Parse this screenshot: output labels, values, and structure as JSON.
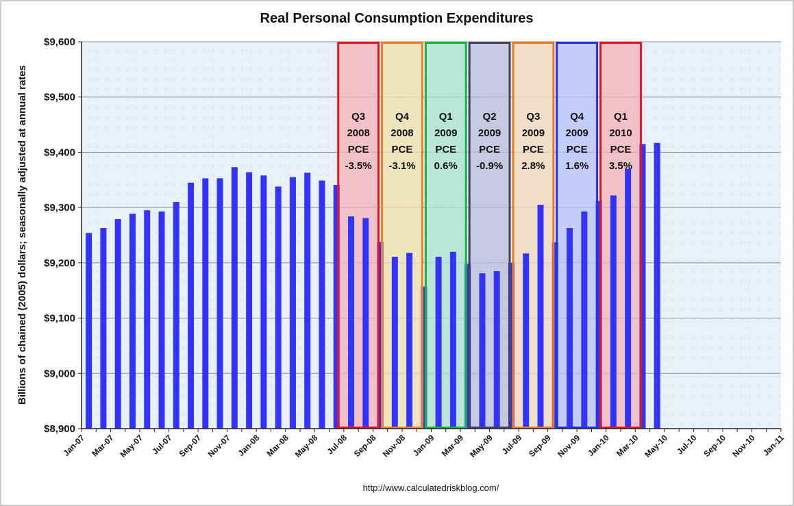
{
  "chart_data": {
    "type": "bar",
    "title": "Real Personal Consumption Expenditures",
    "ylabel": "Billions of chained (2005) dollars; seasonally adjusted at annual rates",
    "xlabel": "",
    "source": "http://www.calculatedriskblog.com/",
    "ylim": [
      8900,
      9600
    ],
    "yticks": [
      8900,
      9000,
      9100,
      9200,
      9300,
      9400,
      9500,
      9600
    ],
    "ytick_labels": [
      "$8,900",
      "$9,000",
      "$9,100",
      "$9,200",
      "$9,300",
      "$9,400",
      "$9,500",
      "$9,600"
    ],
    "grid": true,
    "bar_color": "#3333ff",
    "axis_months": [
      "Jan-07",
      "Feb-07",
      "Mar-07",
      "Apr-07",
      "May-07",
      "Jun-07",
      "Jul-07",
      "Aug-07",
      "Sep-07",
      "Oct-07",
      "Nov-07",
      "Dec-07",
      "Jan-08",
      "Feb-08",
      "Mar-08",
      "Apr-08",
      "May-08",
      "Jun-08",
      "Jul-08",
      "Aug-08",
      "Sep-08",
      "Oct-08",
      "Nov-08",
      "Dec-08",
      "Jan-09",
      "Feb-09",
      "Mar-09",
      "Apr-09",
      "May-09",
      "Jun-09",
      "Jul-09",
      "Aug-09",
      "Sep-09",
      "Oct-09",
      "Nov-09",
      "Dec-09",
      "Jan-10",
      "Feb-10",
      "Mar-10",
      "Apr-10",
      "May-10",
      "Jun-10",
      "Jul-10",
      "Aug-10",
      "Sep-10",
      "Oct-10",
      "Nov-10",
      "Dec-10",
      "Jan-11"
    ],
    "x_tick_labels": [
      "Jan-07",
      "Mar-07",
      "May-07",
      "Jul-07",
      "Sep-07",
      "Nov-07",
      "Jan-08",
      "Mar-08",
      "May-08",
      "Jul-08",
      "Sep-08",
      "Nov-08",
      "Jan-09",
      "Mar-09",
      "May-09",
      "Jul-09",
      "Sep-09",
      "Nov-09",
      "Jan-10",
      "Mar-10",
      "May-10",
      "Jul-10",
      "Sep-10",
      "Nov-10",
      "Jan-11"
    ],
    "categories": [
      "Jan-07",
      "Feb-07",
      "Mar-07",
      "Apr-07",
      "May-07",
      "Jun-07",
      "Jul-07",
      "Aug-07",
      "Sep-07",
      "Oct-07",
      "Nov-07",
      "Dec-07",
      "Jan-08",
      "Feb-08",
      "Mar-08",
      "Apr-08",
      "May-08",
      "Jun-08",
      "Jul-08",
      "Aug-08",
      "Sep-08",
      "Oct-08",
      "Nov-08",
      "Dec-08",
      "Jan-09",
      "Feb-09",
      "Mar-09",
      "Apr-09",
      "May-09",
      "Jun-09",
      "Jul-09",
      "Aug-09",
      "Sep-09",
      "Oct-09",
      "Nov-09",
      "Dec-09",
      "Jan-10",
      "Feb-10",
      "Mar-10",
      "Apr-10"
    ],
    "values": [
      9254,
      9263,
      9279,
      9289,
      9295,
      9293,
      9310,
      9345,
      9353,
      9353,
      9373,
      9364,
      9358,
      9338,
      9355,
      9363,
      9349,
      9341,
      9284,
      9281,
      9238,
      9211,
      9218,
      9157,
      9211,
      9220,
      9198,
      9181,
      9185,
      9200,
      9217,
      9305,
      9237,
      9263,
      9293,
      9312,
      9322,
      9370,
      9415,
      9417
    ],
    "quarters": [
      {
        "quarter": "Q3",
        "year": "2008",
        "measure": "PCE",
        "change": "-3.5%",
        "start": "Jul-08",
        "end": "Sep-08",
        "color": "#e8141c",
        "fill": "#f6b0b6"
      },
      {
        "quarter": "Q4",
        "year": "2008",
        "measure": "PCE",
        "change": "-3.1%",
        "start": "Oct-08",
        "end": "Dec-08",
        "color": "#f08020",
        "fill": "#f3e0a8"
      },
      {
        "quarter": "Q1",
        "year": "2009",
        "measure": "PCE",
        "change": "0.6%",
        "start": "Jan-09",
        "end": "Mar-09",
        "color": "#20b040",
        "fill": "#a8e4cc"
      },
      {
        "quarter": "Q2",
        "year": "2009",
        "measure": "PCE",
        "change": "-0.9%",
        "start": "Apr-09",
        "end": "Jun-09",
        "color": "#404060",
        "fill": "#bcbcd8"
      },
      {
        "quarter": "Q3",
        "year": "2009",
        "measure": "PCE",
        "change": "2.8%",
        "start": "Jul-09",
        "end": "Sep-09",
        "color": "#f07820",
        "fill": "#f4d8b8"
      },
      {
        "quarter": "Q4",
        "year": "2009",
        "measure": "PCE",
        "change": "1.6%",
        "start": "Oct-09",
        "end": "Dec-09",
        "color": "#2030f0",
        "fill": "#b8c0f8"
      },
      {
        "quarter": "Q1",
        "year": "2010",
        "measure": "PCE",
        "change": "3.5%",
        "start": "Jan-10",
        "end": "Mar-10",
        "color": "#e8141c",
        "fill": "#f6b0b6"
      }
    ]
  }
}
